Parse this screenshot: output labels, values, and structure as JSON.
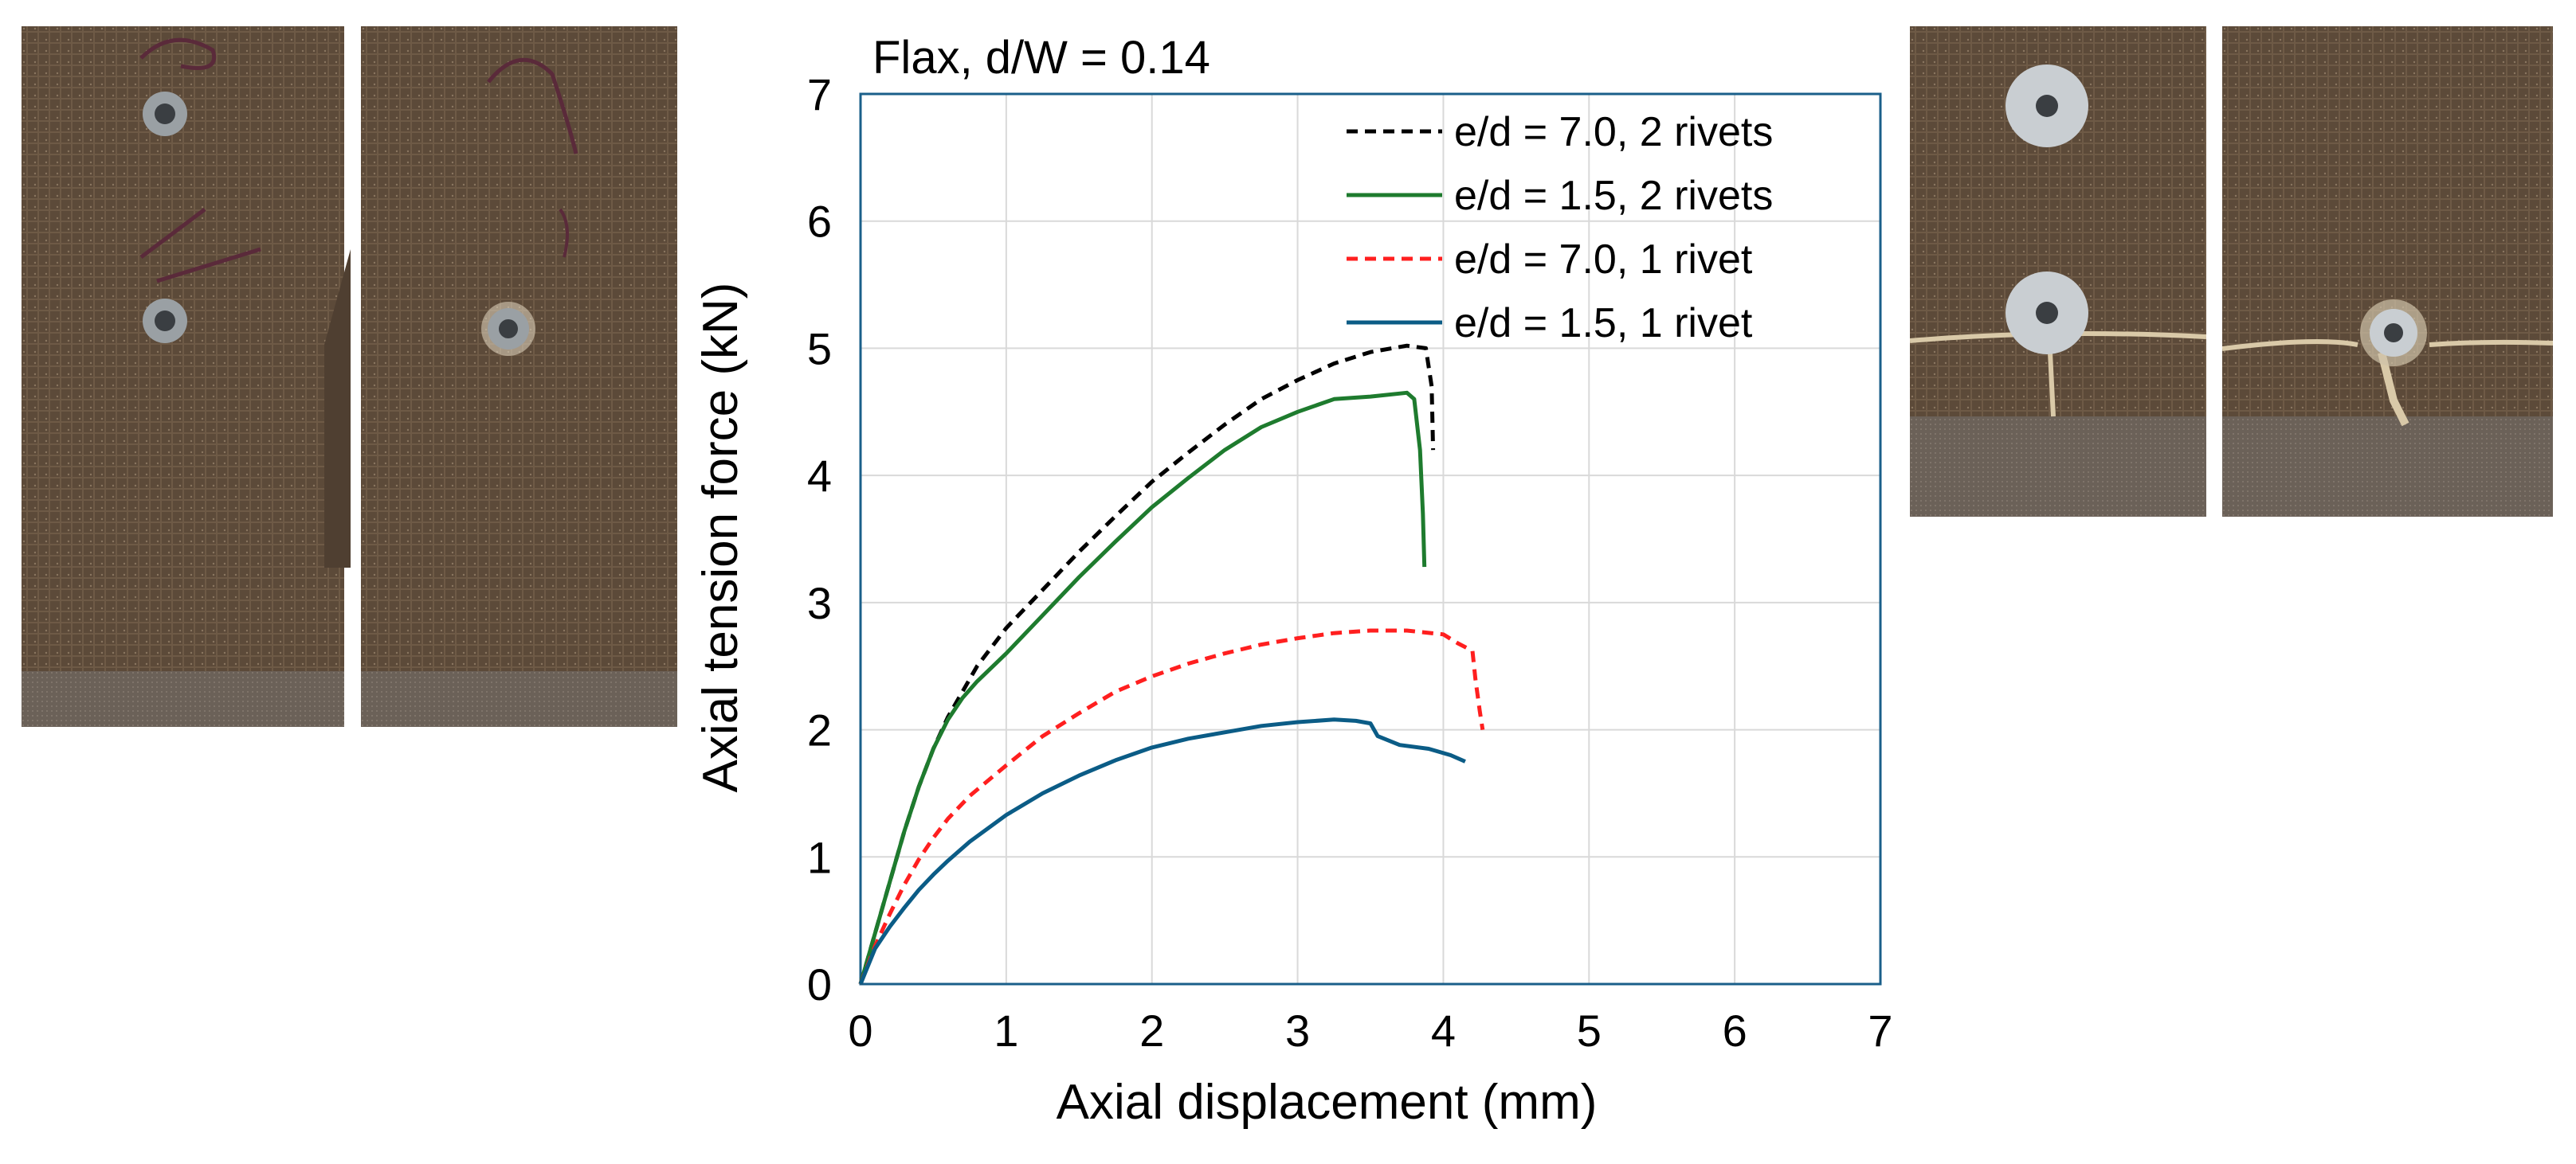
{
  "chart_data": {
    "type": "line",
    "title": "Flax, d/W = 0.14",
    "xlabel": "Axial displacement (mm)",
    "ylabel": "Axial tension force (kN)",
    "xlim": [
      0,
      7
    ],
    "ylim": [
      0,
      7
    ],
    "xticks": [
      0,
      1,
      2,
      3,
      4,
      5,
      6,
      7
    ],
    "yticks": [
      0,
      1,
      2,
      3,
      4,
      5,
      6,
      7
    ],
    "grid": true,
    "legend_position": "top-right",
    "series": [
      {
        "name": "e/d = 7.0, 2 rivets",
        "color": "#000000",
        "dashed": true,
        "points": [
          [
            0,
            0
          ],
          [
            0.1,
            0.4
          ],
          [
            0.2,
            0.8
          ],
          [
            0.3,
            1.2
          ],
          [
            0.4,
            1.55
          ],
          [
            0.5,
            1.85
          ],
          [
            0.6,
            2.1
          ],
          [
            0.7,
            2.3
          ],
          [
            0.8,
            2.5
          ],
          [
            1.0,
            2.8
          ],
          [
            1.25,
            3.1
          ],
          [
            1.5,
            3.4
          ],
          [
            1.75,
            3.68
          ],
          [
            2.0,
            3.95
          ],
          [
            2.25,
            4.18
          ],
          [
            2.5,
            4.4
          ],
          [
            2.75,
            4.6
          ],
          [
            3.0,
            4.75
          ],
          [
            3.25,
            4.88
          ],
          [
            3.5,
            4.97
          ],
          [
            3.75,
            5.02
          ],
          [
            3.88,
            5.0
          ],
          [
            3.92,
            4.7
          ],
          [
            3.93,
            4.2
          ]
        ]
      },
      {
        "name": "e/d = 1.5, 2 rivets",
        "color": "#1e7b2e",
        "dashed": false,
        "points": [
          [
            0,
            0
          ],
          [
            0.1,
            0.4
          ],
          [
            0.2,
            0.8
          ],
          [
            0.3,
            1.2
          ],
          [
            0.4,
            1.55
          ],
          [
            0.5,
            1.85
          ],
          [
            0.6,
            2.08
          ],
          [
            0.7,
            2.25
          ],
          [
            0.8,
            2.38
          ],
          [
            1.0,
            2.6
          ],
          [
            1.25,
            2.9
          ],
          [
            1.5,
            3.2
          ],
          [
            1.75,
            3.48
          ],
          [
            2.0,
            3.75
          ],
          [
            2.25,
            3.98
          ],
          [
            2.5,
            4.2
          ],
          [
            2.75,
            4.38
          ],
          [
            3.0,
            4.5
          ],
          [
            3.25,
            4.6
          ],
          [
            3.5,
            4.62
          ],
          [
            3.75,
            4.65
          ],
          [
            3.8,
            4.6
          ],
          [
            3.84,
            4.2
          ],
          [
            3.86,
            3.7
          ],
          [
            3.87,
            3.28
          ]
        ]
      },
      {
        "name": "e/d = 7.0, 1 rivet",
        "color": "#ff1f1f",
        "dashed": true,
        "points": [
          [
            0,
            0
          ],
          [
            0.1,
            0.3
          ],
          [
            0.2,
            0.55
          ],
          [
            0.3,
            0.78
          ],
          [
            0.4,
            0.98
          ],
          [
            0.5,
            1.15
          ],
          [
            0.6,
            1.3
          ],
          [
            0.75,
            1.48
          ],
          [
            1.0,
            1.72
          ],
          [
            1.25,
            1.95
          ],
          [
            1.5,
            2.13
          ],
          [
            1.75,
            2.3
          ],
          [
            2.0,
            2.42
          ],
          [
            2.25,
            2.52
          ],
          [
            2.5,
            2.6
          ],
          [
            2.75,
            2.67
          ],
          [
            3.0,
            2.72
          ],
          [
            3.25,
            2.76
          ],
          [
            3.5,
            2.78
          ],
          [
            3.75,
            2.78
          ],
          [
            4.0,
            2.75
          ],
          [
            4.1,
            2.68
          ],
          [
            4.2,
            2.62
          ],
          [
            4.22,
            2.4
          ],
          [
            4.25,
            2.15
          ],
          [
            4.27,
            2.0
          ]
        ]
      },
      {
        "name": "e/d = 1.5, 1 rivet",
        "color": "#0b5c86",
        "dashed": false,
        "points": [
          [
            0,
            0
          ],
          [
            0.1,
            0.28
          ],
          [
            0.2,
            0.45
          ],
          [
            0.3,
            0.6
          ],
          [
            0.4,
            0.74
          ],
          [
            0.5,
            0.86
          ],
          [
            0.6,
            0.97
          ],
          [
            0.75,
            1.12
          ],
          [
            1.0,
            1.33
          ],
          [
            1.25,
            1.5
          ],
          [
            1.5,
            1.64
          ],
          [
            1.75,
            1.76
          ],
          [
            2.0,
            1.86
          ],
          [
            2.25,
            1.93
          ],
          [
            2.5,
            1.98
          ],
          [
            2.75,
            2.03
          ],
          [
            3.0,
            2.06
          ],
          [
            3.25,
            2.08
          ],
          [
            3.4,
            2.07
          ],
          [
            3.5,
            2.05
          ],
          [
            3.55,
            1.95
          ],
          [
            3.7,
            1.88
          ],
          [
            3.9,
            1.85
          ],
          [
            4.05,
            1.8
          ],
          [
            4.15,
            1.75
          ]
        ]
      }
    ]
  },
  "photos": [
    {
      "name": "photo-specimen-1",
      "rivets": 2,
      "failed": false
    },
    {
      "name": "photo-specimen-2",
      "rivets": 1,
      "failed": false
    },
    {
      "name": "photo-specimen-3",
      "rivets": 2,
      "failed": true
    },
    {
      "name": "photo-specimen-4",
      "rivets": 1,
      "failed": true
    }
  ]
}
